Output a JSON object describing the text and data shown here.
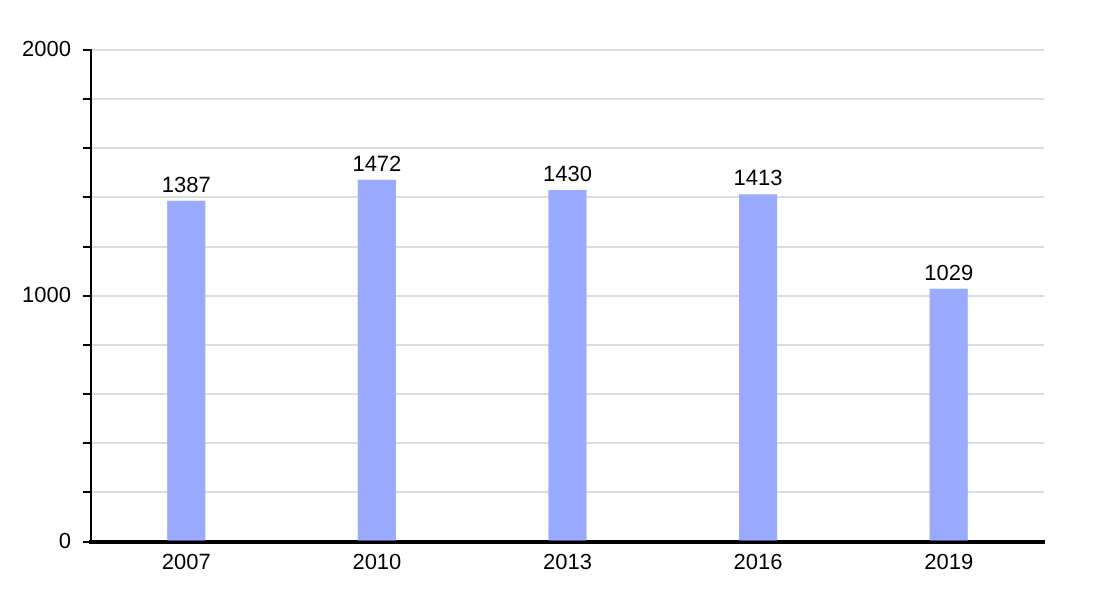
{
  "chart_data": {
    "type": "bar",
    "categories": [
      "2007",
      "2010",
      "2013",
      "2016",
      "2019"
    ],
    "values": [
      1387,
      1472,
      1430,
      1413,
      1029
    ],
    "color": "#99aaff",
    "ylim": [
      0,
      2000
    ],
    "yticks": [
      0,
      {
        "value": 200,
        "label": null
      },
      {
        "value": 400,
        "label": null
      },
      {
        "value": 600,
        "label": null
      },
      {
        "value": 800,
        "label": null
      },
      1000,
      {
        "value": 1200,
        "label": null
      },
      {
        "value": 1400,
        "label": null
      },
      {
        "value": 1600,
        "label": null
      },
      {
        "value": 1800,
        "label": null
      },
      2000
    ],
    "grid": "y",
    "data_labels": true,
    "legend": false
  }
}
